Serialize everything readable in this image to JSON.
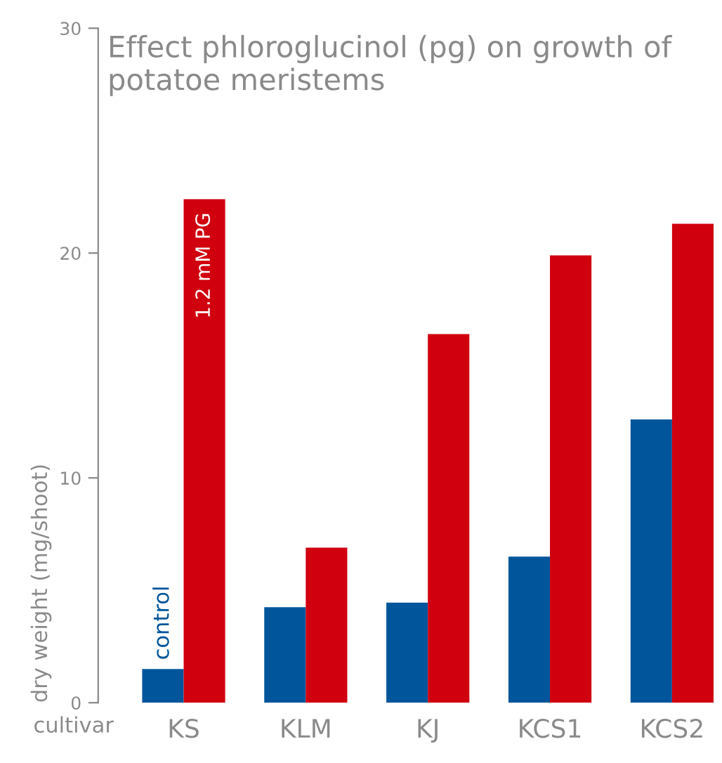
{
  "chart_data": {
    "type": "bar",
    "title": "Effect phloroglucinol (pg) on growth of potatoe meristems",
    "xlabel": "cultivar",
    "ylabel": "dry weight (mg/shoot)",
    "categories": [
      "KS",
      "KLM",
      "KJ",
      "KCS1",
      "KCS2"
    ],
    "series": [
      {
        "name": "control",
        "color": "#00559b",
        "values": [
          1.5,
          4.25,
          4.45,
          6.5,
          12.6
        ]
      },
      {
        "name": "1.2 mM PG",
        "color": "#d0000f",
        "values": [
          22.4,
          6.9,
          16.4,
          19.9,
          21.3
        ]
      }
    ],
    "ylim": [
      0,
      30
    ],
    "yticks": [
      0,
      10,
      20,
      30
    ],
    "grid": false,
    "legend": false
  }
}
